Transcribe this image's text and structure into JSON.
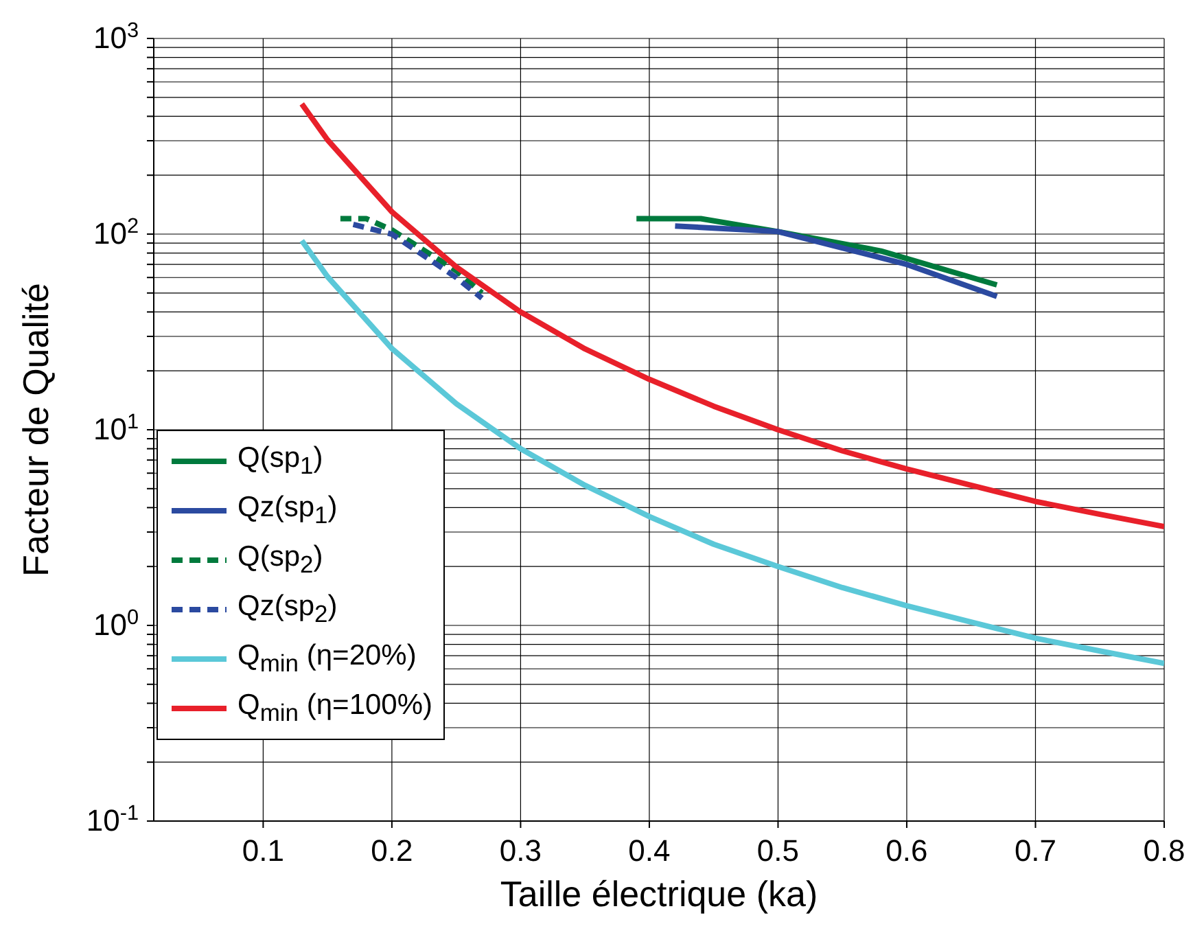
{
  "chart_data": {
    "type": "line",
    "xlabel": "Taille électrique (ka)",
    "ylabel": "Facteur de Qualité",
    "log": "y",
    "grid": true,
    "legend": "bottom left",
    "marker": "none",
    "xlim": [
      0.015,
      0.8
    ],
    "xticks": [
      0.1,
      0.2,
      0.3,
      0.4,
      0.5,
      0.6,
      0.7,
      0.8
    ],
    "ylim": [
      0.1,
      1000
    ],
    "yticks": [
      {
        "value": 0.1,
        "label": "10$^{-1}$"
      },
      {
        "value": 0.2,
        "label": null
      },
      {
        "value": 0.3,
        "label": null
      },
      {
        "value": 0.4,
        "label": null
      },
      {
        "value": 0.5,
        "label": null
      },
      {
        "value": 0.6,
        "label": null
      },
      {
        "value": 0.7,
        "label": null
      },
      {
        "value": 0.8,
        "label": null
      },
      {
        "value": 0.9,
        "label": null
      },
      {
        "value": 1,
        "label": "10$^{0}$"
      },
      {
        "value": 2,
        "label": null
      },
      {
        "value": 3,
        "label": null
      },
      {
        "value": 4,
        "label": null
      },
      {
        "value": 5,
        "label": null
      },
      {
        "value": 6,
        "label": null
      },
      {
        "value": 7,
        "label": null
      },
      {
        "value": 8,
        "label": null
      },
      {
        "value": 9,
        "label": null
      },
      {
        "value": 10,
        "label": "10$^{1}$"
      },
      {
        "value": 20,
        "label": null
      },
      {
        "value": 30,
        "label": null
      },
      {
        "value": 40,
        "label": null
      },
      {
        "value": 50,
        "label": null
      },
      {
        "value": 60,
        "label": null
      },
      {
        "value": 70,
        "label": null
      },
      {
        "value": 80,
        "label": null
      },
      {
        "value": 90,
        "label": null
      },
      {
        "value": 100,
        "label": "10$^{2}$"
      },
      {
        "value": 200,
        "label": null
      },
      {
        "value": 300,
        "label": null
      },
      {
        "value": 400,
        "label": null
      },
      {
        "value": 500,
        "label": null
      },
      {
        "value": 600,
        "label": null
      },
      {
        "value": 700,
        "label": null
      },
      {
        "value": 800,
        "label": null
      },
      {
        "value": 900,
        "label": null
      },
      {
        "value": 1000,
        "label": "10$^{3}$"
      }
    ],
    "series": [
      {
        "name": "Q(sp$_{1}$)",
        "color": "#007a3d",
        "line_style": "solid",
        "x": [
          0.39,
          0.44,
          0.5,
          0.58,
          0.67
        ],
        "values": [
          120,
          120,
          103,
          82,
          55
        ]
      },
      {
        "name": "Qz(sp$_{1}$)",
        "color": "#2b4aa0",
        "line_style": "solid",
        "x": [
          0.42,
          0.5,
          0.6,
          0.67
        ],
        "values": [
          110,
          103,
          70,
          48
        ]
      },
      {
        "name": "Q(sp$_{2}$)",
        "color": "#007a3d",
        "line_style": "dashed",
        "x": [
          0.16,
          0.18,
          0.2,
          0.25,
          0.27
        ],
        "values": [
          120,
          120,
          105,
          65,
          50
        ]
      },
      {
        "name": "Qz(sp$_{2}$)",
        "color": "#2b4aa0",
        "line_style": "dashed",
        "x": [
          0.17,
          0.2,
          0.25,
          0.27
        ],
        "values": [
          112,
          100,
          60,
          47
        ]
      },
      {
        "name": "Q$_{min}$ (η=20%)",
        "color": "#5bc8d8",
        "line_style": "solid",
        "x": [
          0.13,
          0.15,
          0.2,
          0.25,
          0.3,
          0.35,
          0.4,
          0.45,
          0.5,
          0.55,
          0.6,
          0.65,
          0.7,
          0.75,
          0.8
        ],
        "values": [
          92.6,
          60.6,
          26,
          13.6,
          8,
          5.2,
          3.6,
          2.6,
          2.0,
          1.56,
          1.26,
          1.04,
          0.86,
          0.74,
          0.64
        ]
      },
      {
        "name": "Q$_{min}$ (η=100%)",
        "color": "#e8202a",
        "line_style": "solid",
        "x": [
          0.13,
          0.15,
          0.2,
          0.25,
          0.3,
          0.35,
          0.4,
          0.45,
          0.5,
          0.55,
          0.6,
          0.65,
          0.7,
          0.75,
          0.8
        ],
        "values": [
          463,
          303,
          130,
          68,
          40,
          25.9,
          18.1,
          13.2,
          10,
          7.8,
          6.3,
          5.2,
          4.3,
          3.7,
          3.2
        ]
      }
    ]
  }
}
